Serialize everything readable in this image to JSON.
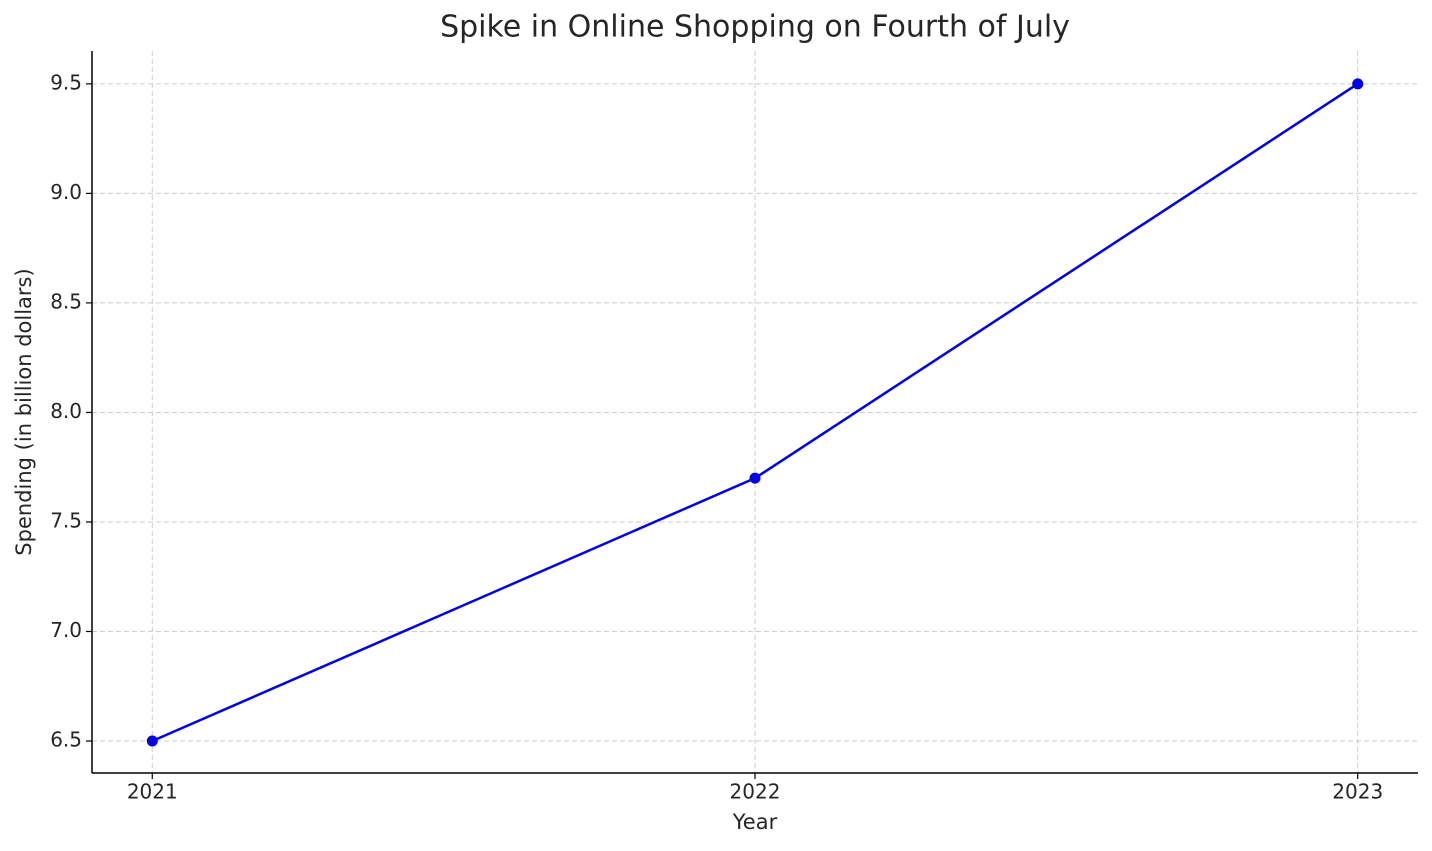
{
  "chart_data": {
    "type": "line",
    "title": "Spike in Online Shopping on Fourth of July",
    "x_label": "Year",
    "y_label": "Spending (in billion dollars)",
    "x": [
      2021,
      2022,
      2023
    ],
    "series": [
      {
        "name": "Spending",
        "color": "#0000ee",
        "values": [
          6.5,
          7.7,
          9.5
        ]
      }
    ],
    "xlim": [
      2020.9,
      2023.1
    ],
    "xticks": [
      2021,
      2022,
      2023
    ],
    "ylim": [
      6.354,
      9.65
    ],
    "yticks": [
      6.5,
      {
        "value": 7,
        "label": "7.0"
      },
      7.5,
      {
        "value": 8,
        "label": "8.0"
      },
      8.5,
      {
        "value": 9,
        "label": "9.0"
      },
      9.5
    ],
    "grid": true
  }
}
